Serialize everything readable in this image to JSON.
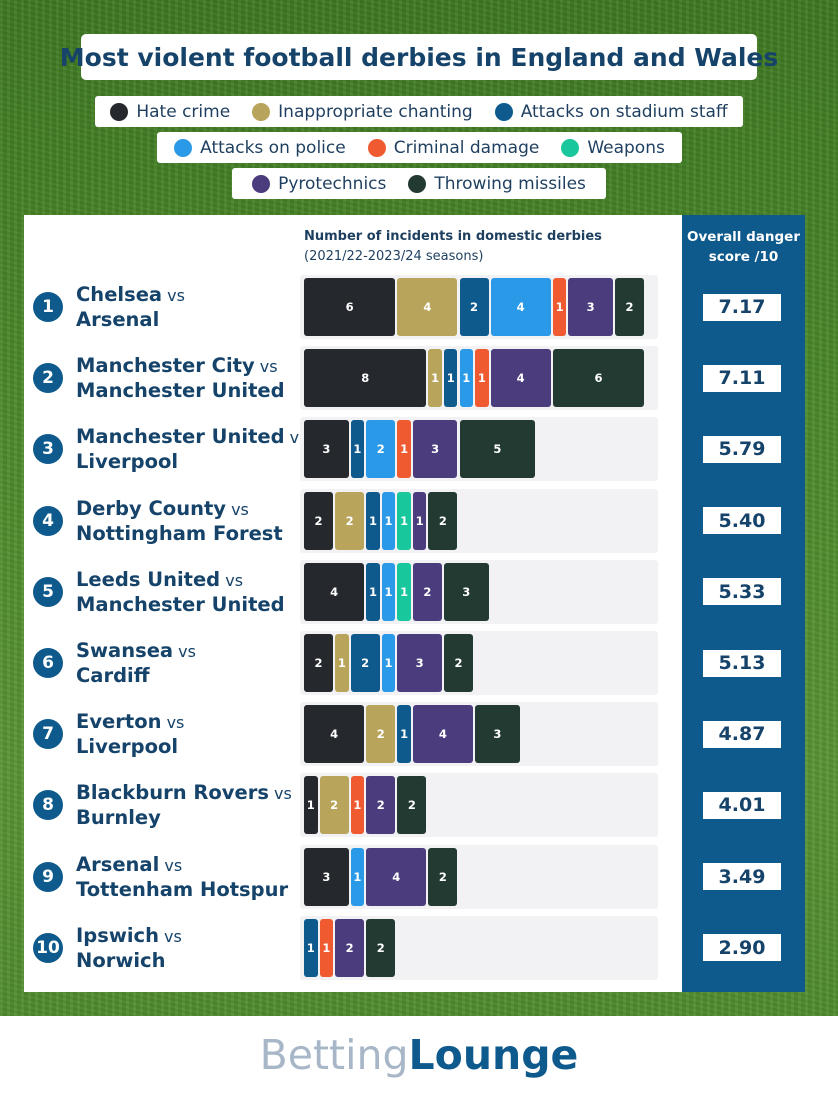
{
  "title": "Most violent football derbies in England and Wales",
  "legend": [
    [
      {
        "label": "Hate crime",
        "color": "#25282d"
      },
      {
        "label": "Inappropriate chanting",
        "color": "#b8a55b"
      },
      {
        "label": "Attacks on stadium staff",
        "color": "#0f5a8d"
      }
    ],
    [
      {
        "label": "Attacks on police",
        "color": "#2a9ae8"
      },
      {
        "label": "Criminal damage",
        "color": "#f05a31"
      },
      {
        "label": "Weapons",
        "color": "#18c79b"
      }
    ],
    [
      {
        "label": "Pyrotechnics",
        "color": "#4b3c7d"
      },
      {
        "label": "Throwing missiles",
        "color": "#233a33"
      }
    ]
  ],
  "incidents_header": {
    "line1": "Number of incidents in domestic derbies",
    "line2": "(2021/22-2023/24 seasons)"
  },
  "score_header": {
    "line1": "Overall danger",
    "line2": "score /10"
  },
  "vs_label": "vs",
  "footer": {
    "logo_part1": "Betting",
    "logo_part2": "Lounge"
  },
  "chart_data": {
    "type": "bar",
    "orientation": "horizontal",
    "stacked": true,
    "categories": [
      "Chelsea vs Arsenal",
      "Manchester City vs Manchester United",
      "Manchester United vs Liverpool",
      "Derby County vs Nottingham Forest",
      "Leeds United vs Manchester United",
      "Swansea vs Cardiff",
      "Everton vs Liverpool",
      "Blackburn Rovers vs Burnley",
      "Arsenal vs Tottenham Hotspur",
      "Ipswich vs Norwich"
    ],
    "series": [
      {
        "name": "Hate crime",
        "color": "#25282d",
        "values": [
          6,
          8,
          3,
          2,
          4,
          2,
          4,
          1,
          3,
          0
        ]
      },
      {
        "name": "Inappropriate chanting",
        "color": "#b8a55b",
        "values": [
          4,
          1,
          0,
          2,
          0,
          1,
          2,
          2,
          0,
          0
        ]
      },
      {
        "name": "Attacks on stadium staff",
        "color": "#0f5a8d",
        "values": [
          2,
          1,
          1,
          1,
          1,
          2,
          1,
          0,
          0,
          1
        ]
      },
      {
        "name": "Attacks on police",
        "color": "#2a9ae8",
        "values": [
          4,
          1,
          2,
          1,
          1,
          1,
          0,
          0,
          1,
          0
        ]
      },
      {
        "name": "Criminal damage",
        "color": "#f05a31",
        "values": [
          1,
          1,
          1,
          0,
          0,
          0,
          0,
          1,
          0,
          1
        ]
      },
      {
        "name": "Weapons",
        "color": "#18c79b",
        "values": [
          0,
          0,
          0,
          1,
          1,
          0,
          0,
          0,
          0,
          0
        ]
      },
      {
        "name": "Pyrotechnics",
        "color": "#4b3c7d",
        "values": [
          3,
          4,
          3,
          1,
          2,
          3,
          4,
          2,
          4,
          2
        ]
      },
      {
        "name": "Throwing missiles",
        "color": "#233a33",
        "values": [
          2,
          6,
          5,
          2,
          3,
          2,
          3,
          2,
          2,
          2
        ]
      }
    ],
    "derbies": [
      {
        "rank": "1",
        "team1": "Chelsea",
        "team2": "Arsenal",
        "score": "7.17"
      },
      {
        "rank": "2",
        "team1": "Manchester City",
        "team2": "Manchester United",
        "score": "7.11"
      },
      {
        "rank": "3",
        "team1": "Manchester United",
        "team2": "Liverpool",
        "score": "5.79"
      },
      {
        "rank": "4",
        "team1": "Derby County",
        "team2": "Nottingham Forest",
        "score": "5.40"
      },
      {
        "rank": "5",
        "team1": "Leeds United",
        "team2": "Manchester United",
        "score": "5.33"
      },
      {
        "rank": "6",
        "team1": "Swansea",
        "team2": "Cardiff",
        "score": "5.13"
      },
      {
        "rank": "7",
        "team1": "Everton",
        "team2": "Liverpool",
        "score": "4.87"
      },
      {
        "rank": "8",
        "team1": "Blackburn Rovers",
        "team2": "Burnley",
        "score": "4.01"
      },
      {
        "rank": "9",
        "team1": "Arsenal",
        "team2": "Tottenham Hotspur",
        "score": "3.49"
      },
      {
        "rank": "10",
        "team1": "Ipswich",
        "team2": "Norwich",
        "score": "2.90"
      }
    ]
  }
}
